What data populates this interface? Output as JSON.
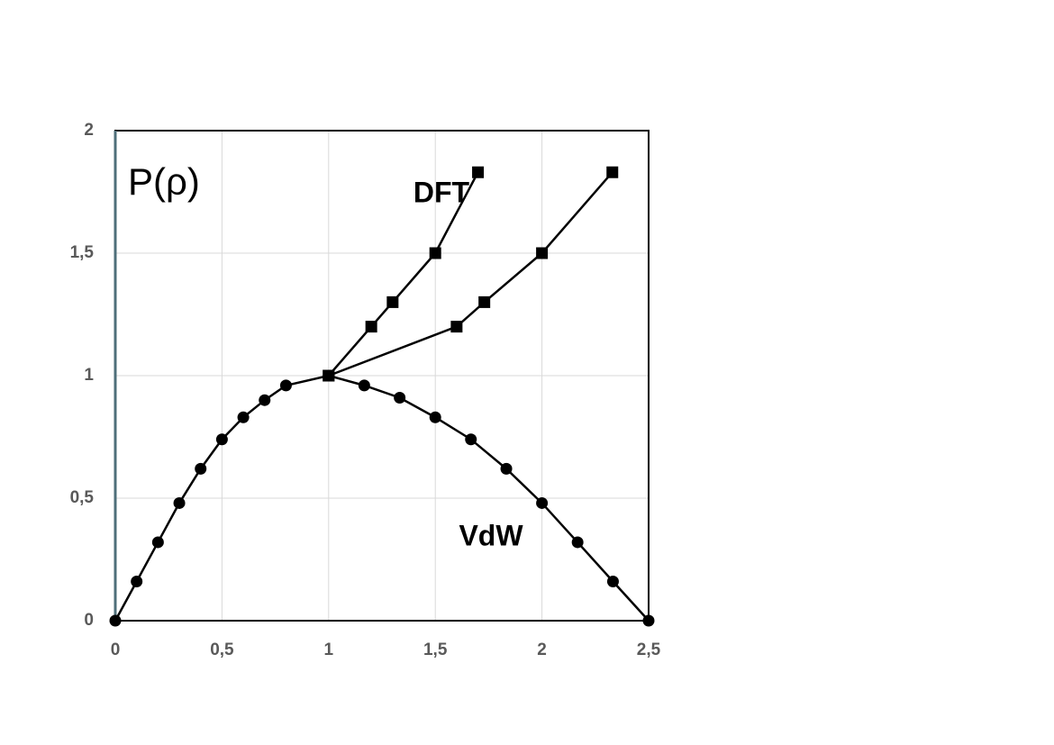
{
  "chart_data": {
    "type": "line",
    "y_label": "P(ρ)",
    "series": [
      {
        "name": "VdW",
        "color": "#000000",
        "marker": "circle",
        "x": [
          0,
          0.1,
          0.2,
          0.3,
          0.4,
          0.5,
          0.6,
          0.7,
          0.8,
          1.0,
          1.167,
          1.333,
          1.5,
          1.667,
          1.833,
          2.0,
          2.167,
          2.333,
          2.5
        ],
        "values": [
          0,
          0.16,
          0.32,
          0.48,
          0.62,
          0.74,
          0.83,
          0.9,
          0.96,
          1.0,
          0.96,
          0.91,
          0.83,
          0.74,
          0.62,
          0.48,
          0.32,
          0.16,
          0
        ]
      },
      {
        "name": "DFT",
        "color": "#000000",
        "marker": "square",
        "x": [
          1.0,
          1.2,
          1.3,
          1.5,
          1.7
        ],
        "values": [
          1.0,
          1.2,
          1.3,
          1.5,
          1.83
        ]
      },
      {
        "color": "#000000",
        "marker": "square",
        "x": [
          1.0,
          1.6,
          1.73,
          2.0,
          2.33
        ],
        "values": [
          1.0,
          1.2,
          1.3,
          1.5,
          1.83
        ]
      }
    ],
    "xlim": [
      0,
      2.5
    ],
    "xticks": [
      0,
      {
        "value": 0.5,
        "label": "0,5"
      },
      1,
      {
        "value": 1.5,
        "label": "1,5"
      },
      2,
      {
        "value": 2.5,
        "label": "2,5"
      }
    ],
    "ylim": [
      0,
      2
    ],
    "yticks": [
      0,
      {
        "value": 0.5,
        "label": "0,5"
      },
      1,
      {
        "value": 1.5,
        "label": "1,5"
      },
      2
    ],
    "grid": true
  }
}
